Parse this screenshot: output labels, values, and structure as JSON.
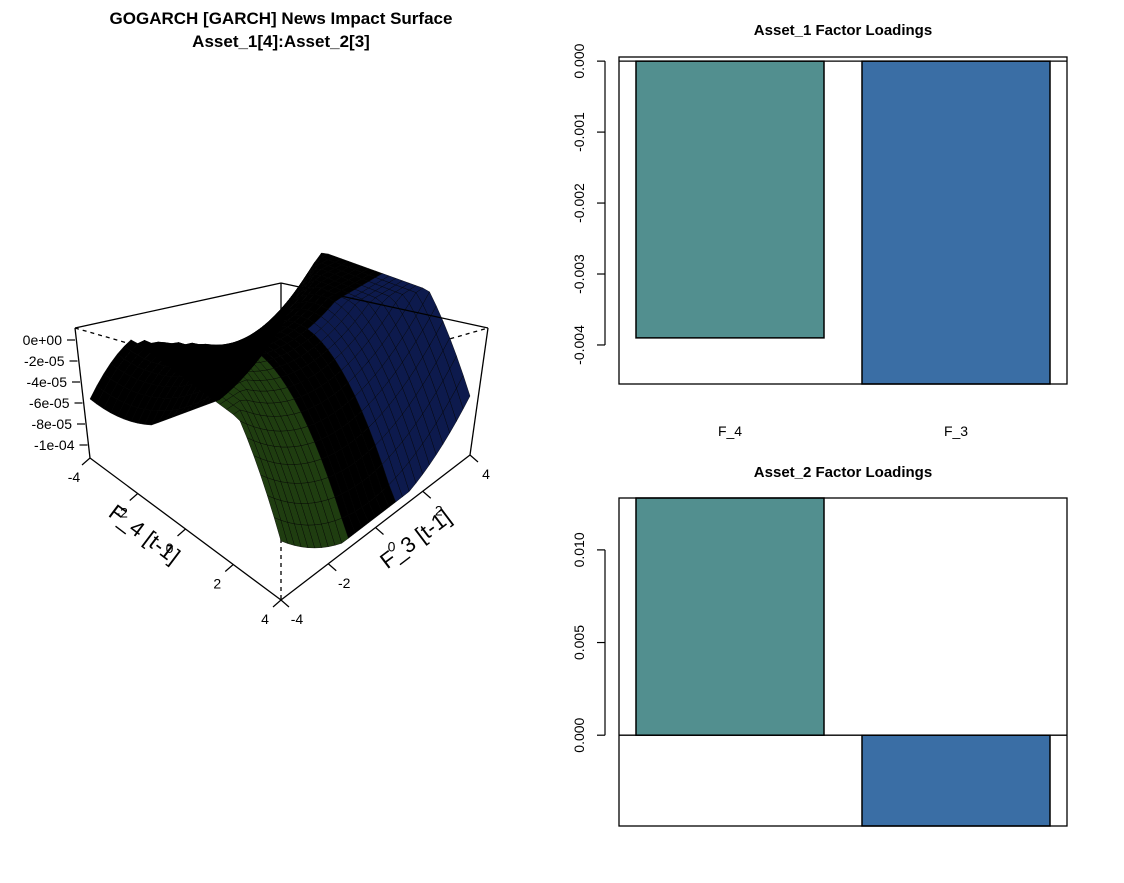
{
  "chart_data": [
    {
      "type": "surface",
      "title": "GOGARCH [GARCH] News Impact Surface",
      "subtitle": "Asset_1[4]:Asset_2[3]",
      "xlabel": "F_4 [t-1]",
      "ylabel": "F_3 [t-1]",
      "zticks": [
        "0e+00",
        "-2e-05",
        "-4e-05",
        "-6e-05",
        "-8e-05",
        "-1e-04"
      ],
      "xticks": [
        "-4",
        "-2",
        "0",
        "2",
        "4"
      ],
      "yticks": [
        "-4",
        "-2",
        "0",
        "2",
        "4"
      ],
      "x_range": [
        -4,
        4
      ],
      "y_range": [
        -4,
        4
      ],
      "z_range": [
        -0.0001,
        0
      ],
      "surface_color": "#000000",
      "note_colors": [
        "#1f3d10",
        "#0d1a4d"
      ]
    },
    {
      "type": "bar",
      "title": "Asset_1 Factor Loadings",
      "categories": [
        "F_4",
        "F_3"
      ],
      "values": [
        -0.0039,
        -0.00455
      ],
      "ylim": [
        -0.00455,
        3e-05
      ],
      "yticks": [
        0,
        -0.001,
        -0.002,
        -0.003,
        -0.004
      ],
      "ytick_labels": [
        "0.000",
        "-0.001",
        "-0.002",
        "-0.003",
        "-0.004"
      ],
      "colors": [
        "#528f8f",
        "#3a6ea5"
      ]
    },
    {
      "type": "bar",
      "title": "Asset_2 Factor Loadings",
      "categories": [
        "F_4",
        "F_3"
      ],
      "values": [
        0.0128,
        -0.0049
      ],
      "ylim": [
        -0.0049,
        0.0128
      ],
      "yticks": [
        0,
        0.005,
        0.01
      ],
      "ytick_labels": [
        "0.000",
        "0.005",
        "0.010"
      ],
      "colors": [
        "#528f8f",
        "#3a6ea5"
      ]
    }
  ]
}
